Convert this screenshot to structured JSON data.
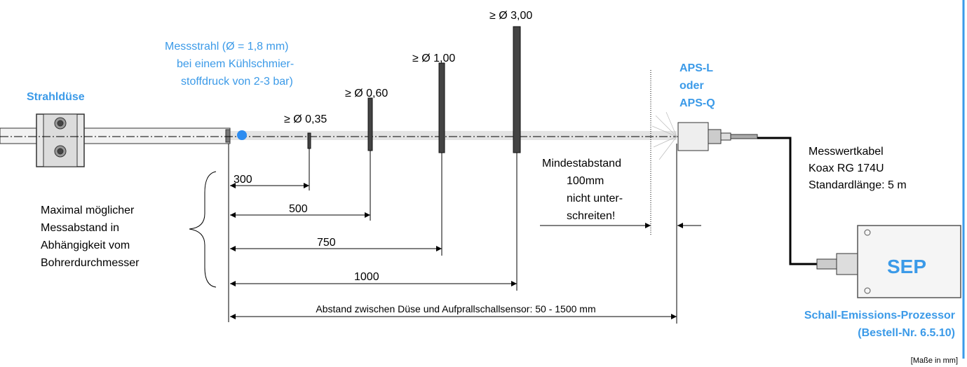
{
  "nozzle": {
    "label": "Strahldüse"
  },
  "jet": {
    "lines": [
      "Messstrahl  (Ø = 1,8 mm)",
      "bei einem Kühlschmier-",
      "stoffdruck von 2-3 bar)"
    ]
  },
  "drills": [
    {
      "label": "≥ Ø 0,35",
      "distance": "300"
    },
    {
      "label": "≥ Ø 0,60",
      "distance": "500"
    },
    {
      "label": "≥ Ø 1,00",
      "distance": "750"
    },
    {
      "label": "≥ Ø 3,00",
      "distance": "1000"
    }
  ],
  "range_note": {
    "lines": [
      "Maximal möglicher",
      "Messabstand in",
      "Abhängigkeit vom",
      "Bohrerdurchmesser"
    ]
  },
  "min_distance": {
    "lines": [
      "Mindestabstand",
      "100mm",
      "nicht unter-",
      "schreiten!"
    ]
  },
  "sensor": {
    "lines": [
      "APS-L",
      "oder",
      "APS-Q"
    ]
  },
  "cable": {
    "lines": [
      "Messwertkabel",
      "Koax RG 174U",
      "Standardlänge:  5 m"
    ]
  },
  "processor": {
    "short": "SEP",
    "lines": [
      "Schall-Emissions-Prozessor",
      "(Bestell-Nr. 6.5.10)"
    ]
  },
  "total_distance": "Abstand zwischen Düse und Aufprallschallsensor: 50 - 1500 mm",
  "units_note": "[Maße in mm]"
}
